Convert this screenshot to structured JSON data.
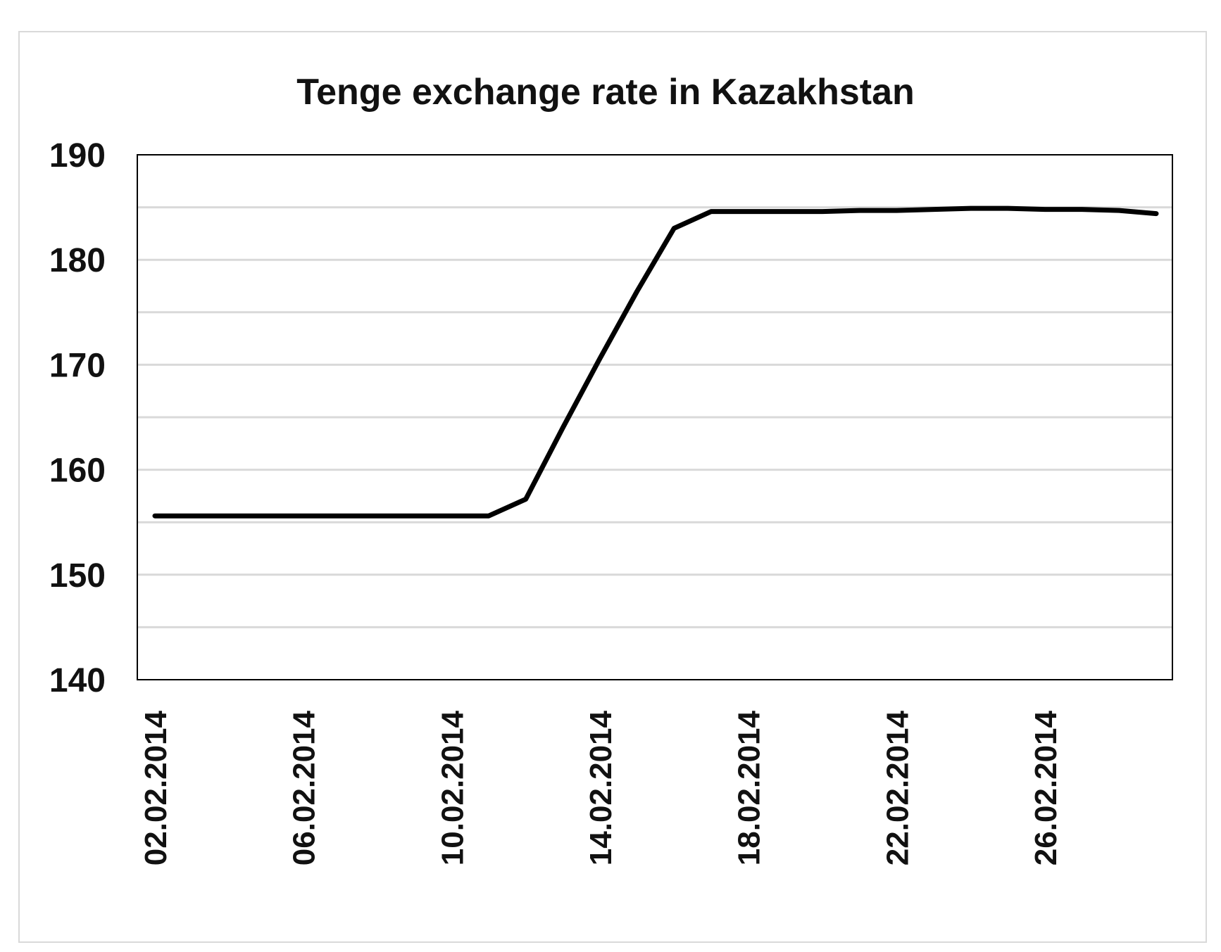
{
  "chart_data": {
    "type": "line",
    "title": "Tenge exchange rate in Kazakhstan",
    "xlabel": "",
    "ylabel": "",
    "ylim": [
      140,
      190
    ],
    "yticks": [
      "190",
      "180",
      "170",
      "160",
      "150",
      "140"
    ],
    "ytick_values": [
      190,
      180,
      170,
      160,
      150,
      140
    ],
    "xtick_labels": [
      "02.02.2014",
      "06.02.2014",
      "10.02.2014",
      "14.02.2014",
      "18.02.2014",
      "22.02.2014",
      "26.02.2014"
    ],
    "x": [
      "02.02.2014",
      "03.02.2014",
      "04.02.2014",
      "05.02.2014",
      "06.02.2014",
      "07.02.2014",
      "08.02.2014",
      "09.02.2014",
      "10.02.2014",
      "11.02.2014",
      "12.02.2014",
      "13.02.2014",
      "14.02.2014",
      "15.02.2014",
      "16.02.2014",
      "17.02.2014",
      "18.02.2014",
      "19.02.2014",
      "20.02.2014",
      "21.02.2014",
      "22.02.2014",
      "23.02.2014",
      "24.02.2014",
      "25.02.2014",
      "26.02.2014",
      "27.02.2014",
      "28.02.2014",
      "01.03.2014"
    ],
    "series": [
      {
        "values": [
          155.6,
          155.6,
          155.6,
          155.6,
          155.6,
          155.6,
          155.6,
          155.6,
          155.6,
          155.6,
          157.2,
          164.0,
          170.6,
          177.0,
          183.0,
          184.6,
          184.6,
          184.6,
          184.6,
          184.7,
          184.7,
          184.8,
          184.9,
          184.9,
          184.8,
          184.8,
          184.7,
          184.4
        ],
        "color": "#000000"
      }
    ],
    "gridlines": "horizontal",
    "legend": "none"
  },
  "colors": {
    "line": "#000000",
    "grid": "#d9d9d9",
    "axis": "#000000",
    "frame": "#d9d9d9"
  }
}
